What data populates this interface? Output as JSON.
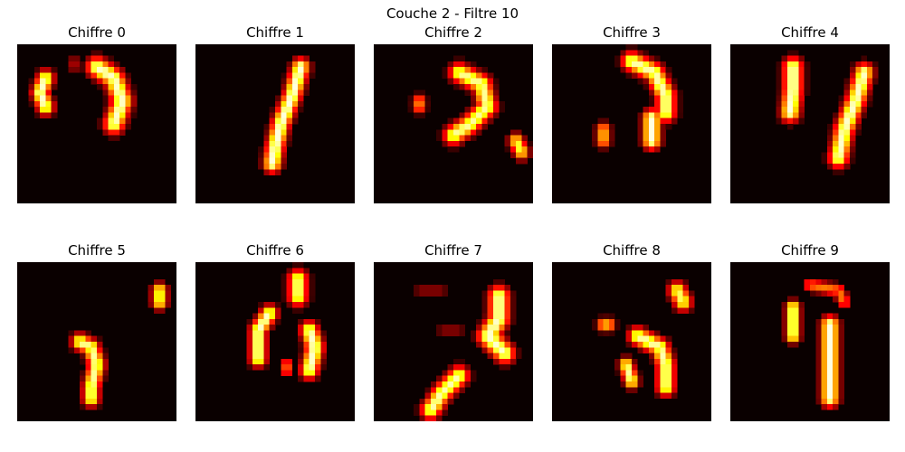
{
  "suptitle": "Couche 2 - Filtre 10",
  "colormap": "hot",
  "background_color": "#0a0000",
  "chart_data": {
    "type": "heatmap",
    "title": "Couche 2 - Filtre 10",
    "grid_size": [
      28,
      28
    ],
    "panels": [
      {
        "title": "Chiffre 0",
        "strokes": [
          {
            "pts": [
              [
                5,
                6
              ],
              [
                4,
                8.5
              ],
              [
                5,
                11
              ]
            ],
            "w": 1.3,
            "v": 0.95
          },
          {
            "pts": [
              [
                14,
                4
              ],
              [
                17,
                6
              ],
              [
                18.5,
                10
              ],
              [
                17,
                14
              ]
            ],
            "w": 1.6,
            "v": 0.95
          },
          {
            "pts": [
              [
                10,
                3
              ],
              [
                10,
                4
              ]
            ],
            "w": 0.8,
            "v": 0.3
          }
        ]
      },
      {
        "title": "Chiffre 1",
        "strokes": [
          {
            "pts": [
              [
                18.5,
                4
              ],
              [
                17,
                9
              ],
              [
                15,
                14
              ],
              [
                14,
                18
              ],
              [
                13.5,
                21
              ]
            ],
            "w": 1.4,
            "v": 0.97
          }
        ]
      },
      {
        "title": "Chiffre 2",
        "strokes": [
          {
            "pts": [
              [
                15,
                5
              ],
              [
                19,
                7
              ],
              [
                20,
                11
              ],
              [
                17,
                14
              ],
              [
                14,
                16
              ]
            ],
            "w": 1.5,
            "v": 0.9
          },
          {
            "pts": [
              [
                8,
                10
              ],
              [
                8,
                11
              ]
            ],
            "w": 1.0,
            "v": 0.65
          },
          {
            "pts": [
              [
                25,
                17
              ],
              [
                26,
                19
              ]
            ],
            "w": 1.2,
            "v": 0.8
          }
        ]
      },
      {
        "title": "Chiffre 3",
        "strokes": [
          {
            "pts": [
              [
                14,
                3
              ],
              [
                18,
                5
              ],
              [
                20,
                9
              ],
              [
                20,
                12
              ]
            ],
            "w": 1.5,
            "v": 0.93
          },
          {
            "pts": [
              [
                17.5,
                13
              ],
              [
                17.5,
                17
              ]
            ],
            "w": 1.4,
            "v": 0.97
          },
          {
            "pts": [
              [
                9,
                15
              ],
              [
                9,
                17
              ]
            ],
            "w": 1.1,
            "v": 0.7
          }
        ]
      },
      {
        "title": "Chiffre 4",
        "strokes": [
          {
            "pts": [
              [
                11,
                4
              ],
              [
                11,
                8
              ],
              [
                10.5,
                12
              ]
            ],
            "w": 1.5,
            "v": 0.97
          },
          {
            "pts": [
              [
                23.5,
                5
              ],
              [
                22,
                10
              ],
              [
                20,
                15
              ],
              [
                19,
                20
              ]
            ],
            "w": 1.5,
            "v": 0.95
          }
        ]
      },
      {
        "title": "Chiffre 5",
        "strokes": [
          {
            "pts": [
              [
                25,
                5
              ],
              [
                25,
                7
              ]
            ],
            "w": 1.2,
            "v": 0.85
          },
          {
            "pts": [
              [
                11,
                14
              ],
              [
                13,
                15
              ],
              [
                14,
                18
              ],
              [
                13,
                22
              ],
              [
                13,
                24
              ]
            ],
            "w": 1.3,
            "v": 0.9
          }
        ]
      },
      {
        "title": "Chiffre 6",
        "strokes": [
          {
            "pts": [
              [
                18,
                3
              ],
              [
                18,
                6
              ]
            ],
            "w": 1.5,
            "v": 0.9
          },
          {
            "pts": [
              [
                13,
                9
              ],
              [
                11,
                12
              ],
              [
                11,
                17
              ]
            ],
            "w": 1.3,
            "v": 0.95
          },
          {
            "pts": [
              [
                20,
                12
              ],
              [
                21,
                15
              ],
              [
                20,
                19
              ]
            ],
            "w": 1.4,
            "v": 0.95
          },
          {
            "pts": [
              [
                16,
                18
              ],
              [
                16,
                19
              ]
            ],
            "w": 0.9,
            "v": 0.6
          }
        ]
      },
      {
        "title": "Chiffre 7",
        "strokes": [
          {
            "pts": [
              [
                22,
                6
              ],
              [
                22,
                10
              ],
              [
                20,
                13
              ],
              [
                23,
                16
              ]
            ],
            "w": 1.6,
            "v": 0.95
          },
          {
            "pts": [
              [
                15,
                20
              ],
              [
                12,
                23
              ],
              [
                10,
                26
              ]
            ],
            "w": 1.5,
            "v": 0.92
          },
          {
            "pts": [
              [
                8,
                5
              ],
              [
                12,
                5
              ]
            ],
            "w": 0.7,
            "v": 0.25
          },
          {
            "pts": [
              [
                12,
                12
              ],
              [
                15,
                12
              ]
            ],
            "w": 0.7,
            "v": 0.25
          }
        ]
      },
      {
        "title": "Chiffre 8",
        "strokes": [
          {
            "pts": [
              [
                22,
                5
              ],
              [
                23,
                7
              ]
            ],
            "w": 1.4,
            "v": 0.85
          },
          {
            "pts": [
              [
                9,
                11
              ],
              [
                10,
                11
              ]
            ],
            "w": 1.0,
            "v": 0.75
          },
          {
            "pts": [
              [
                15,
                13
              ],
              [
                19,
                15
              ],
              [
                20,
                18
              ],
              [
                20,
                22
              ]
            ],
            "w": 1.4,
            "v": 0.92
          },
          {
            "pts": [
              [
                13,
                18
              ],
              [
                14,
                21
              ]
            ],
            "w": 1.1,
            "v": 0.9
          }
        ]
      },
      {
        "title": "Chiffre 9",
        "strokes": [
          {
            "pts": [
              [
                14,
                4
              ],
              [
                19,
                5
              ],
              [
                20,
                7
              ]
            ],
            "w": 1.0,
            "v": 0.55
          },
          {
            "pts": [
              [
                11,
                8
              ],
              [
                11,
                13
              ]
            ],
            "w": 1.1,
            "v": 0.95
          },
          {
            "pts": [
              [
                17.5,
                11
              ],
              [
                17.5,
                17
              ],
              [
                17.5,
                24
              ]
            ],
            "w": 1.4,
            "v": 0.97
          }
        ]
      }
    ]
  }
}
